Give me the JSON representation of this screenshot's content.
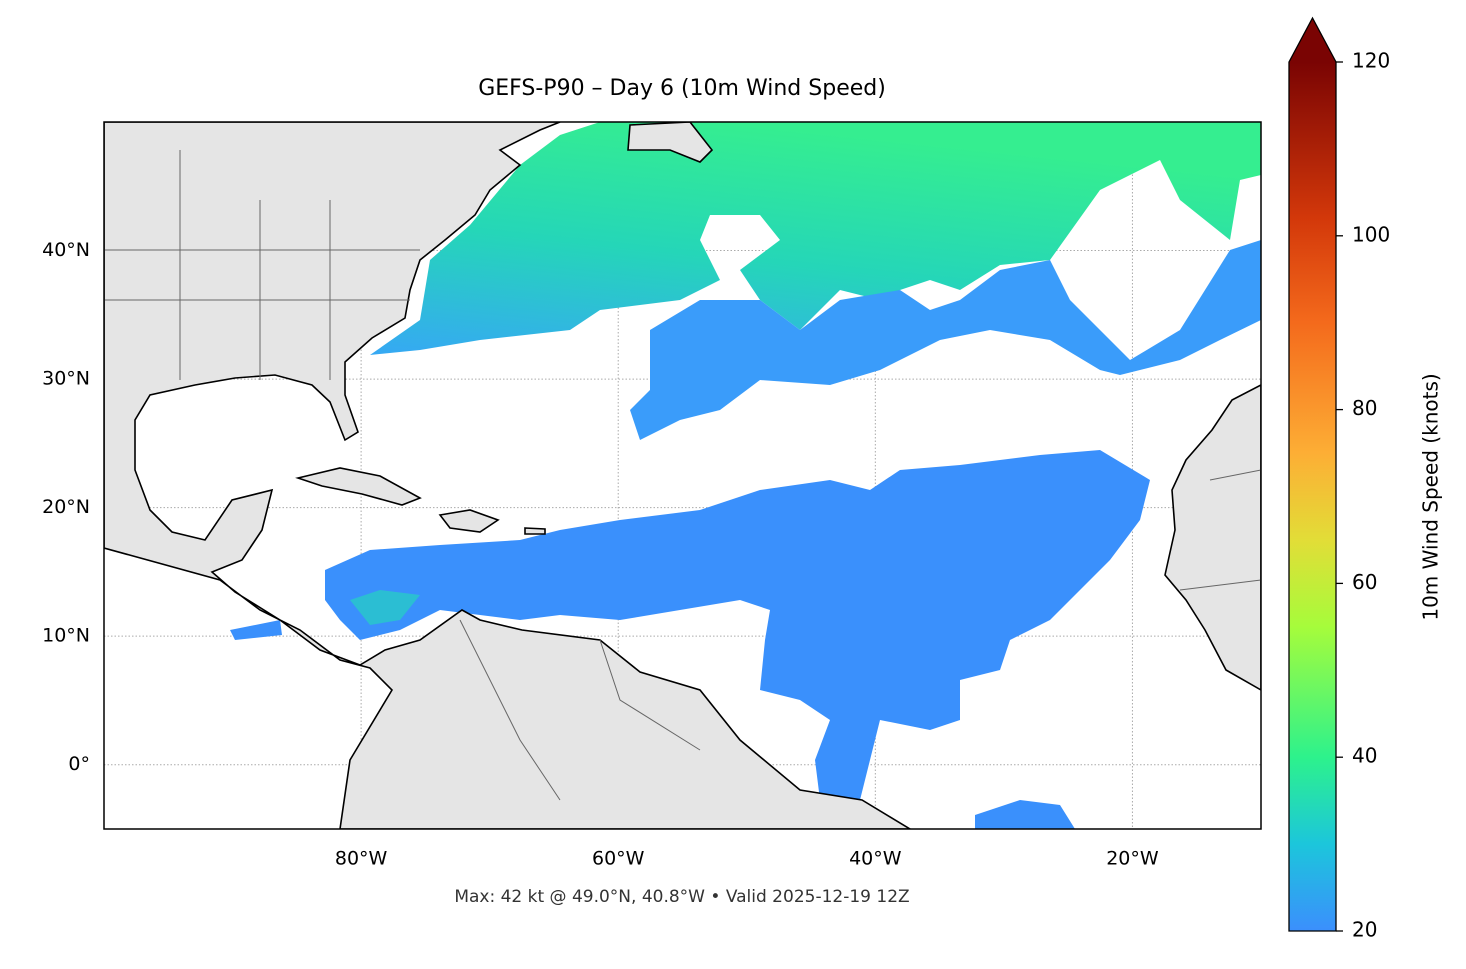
{
  "chart_data": {
    "type": "map",
    "title": "GEFS-P90 – Day 6 (10m Wind Speed)",
    "footnote": "Max: 42 kt @ 49.0°N, 40.8°W • Valid 2025-12-19 12Z",
    "xlim": [
      -100,
      -10
    ],
    "ylim": [
      -5,
      50
    ],
    "xticks": [
      {
        "value": -80,
        "label": "80°W"
      },
      {
        "value": -60,
        "label": "60°W"
      },
      {
        "value": -40,
        "label": "40°W"
      },
      {
        "value": -20,
        "label": "20°W"
      }
    ],
    "yticks": [
      {
        "value": 0,
        "label": "0°"
      },
      {
        "value": 10,
        "label": "10°N"
      },
      {
        "value": 20,
        "label": "20°N"
      },
      {
        "value": 30,
        "label": "30°N"
      },
      {
        "value": 40,
        "label": "40°N"
      }
    ],
    "grid": true,
    "colorbar": {
      "label": "10m Wind Speed (knots)",
      "lim": [
        20,
        120
      ],
      "ticks": [
        20,
        40,
        60,
        80,
        100,
        120
      ],
      "extend": "max"
    }
  }
}
